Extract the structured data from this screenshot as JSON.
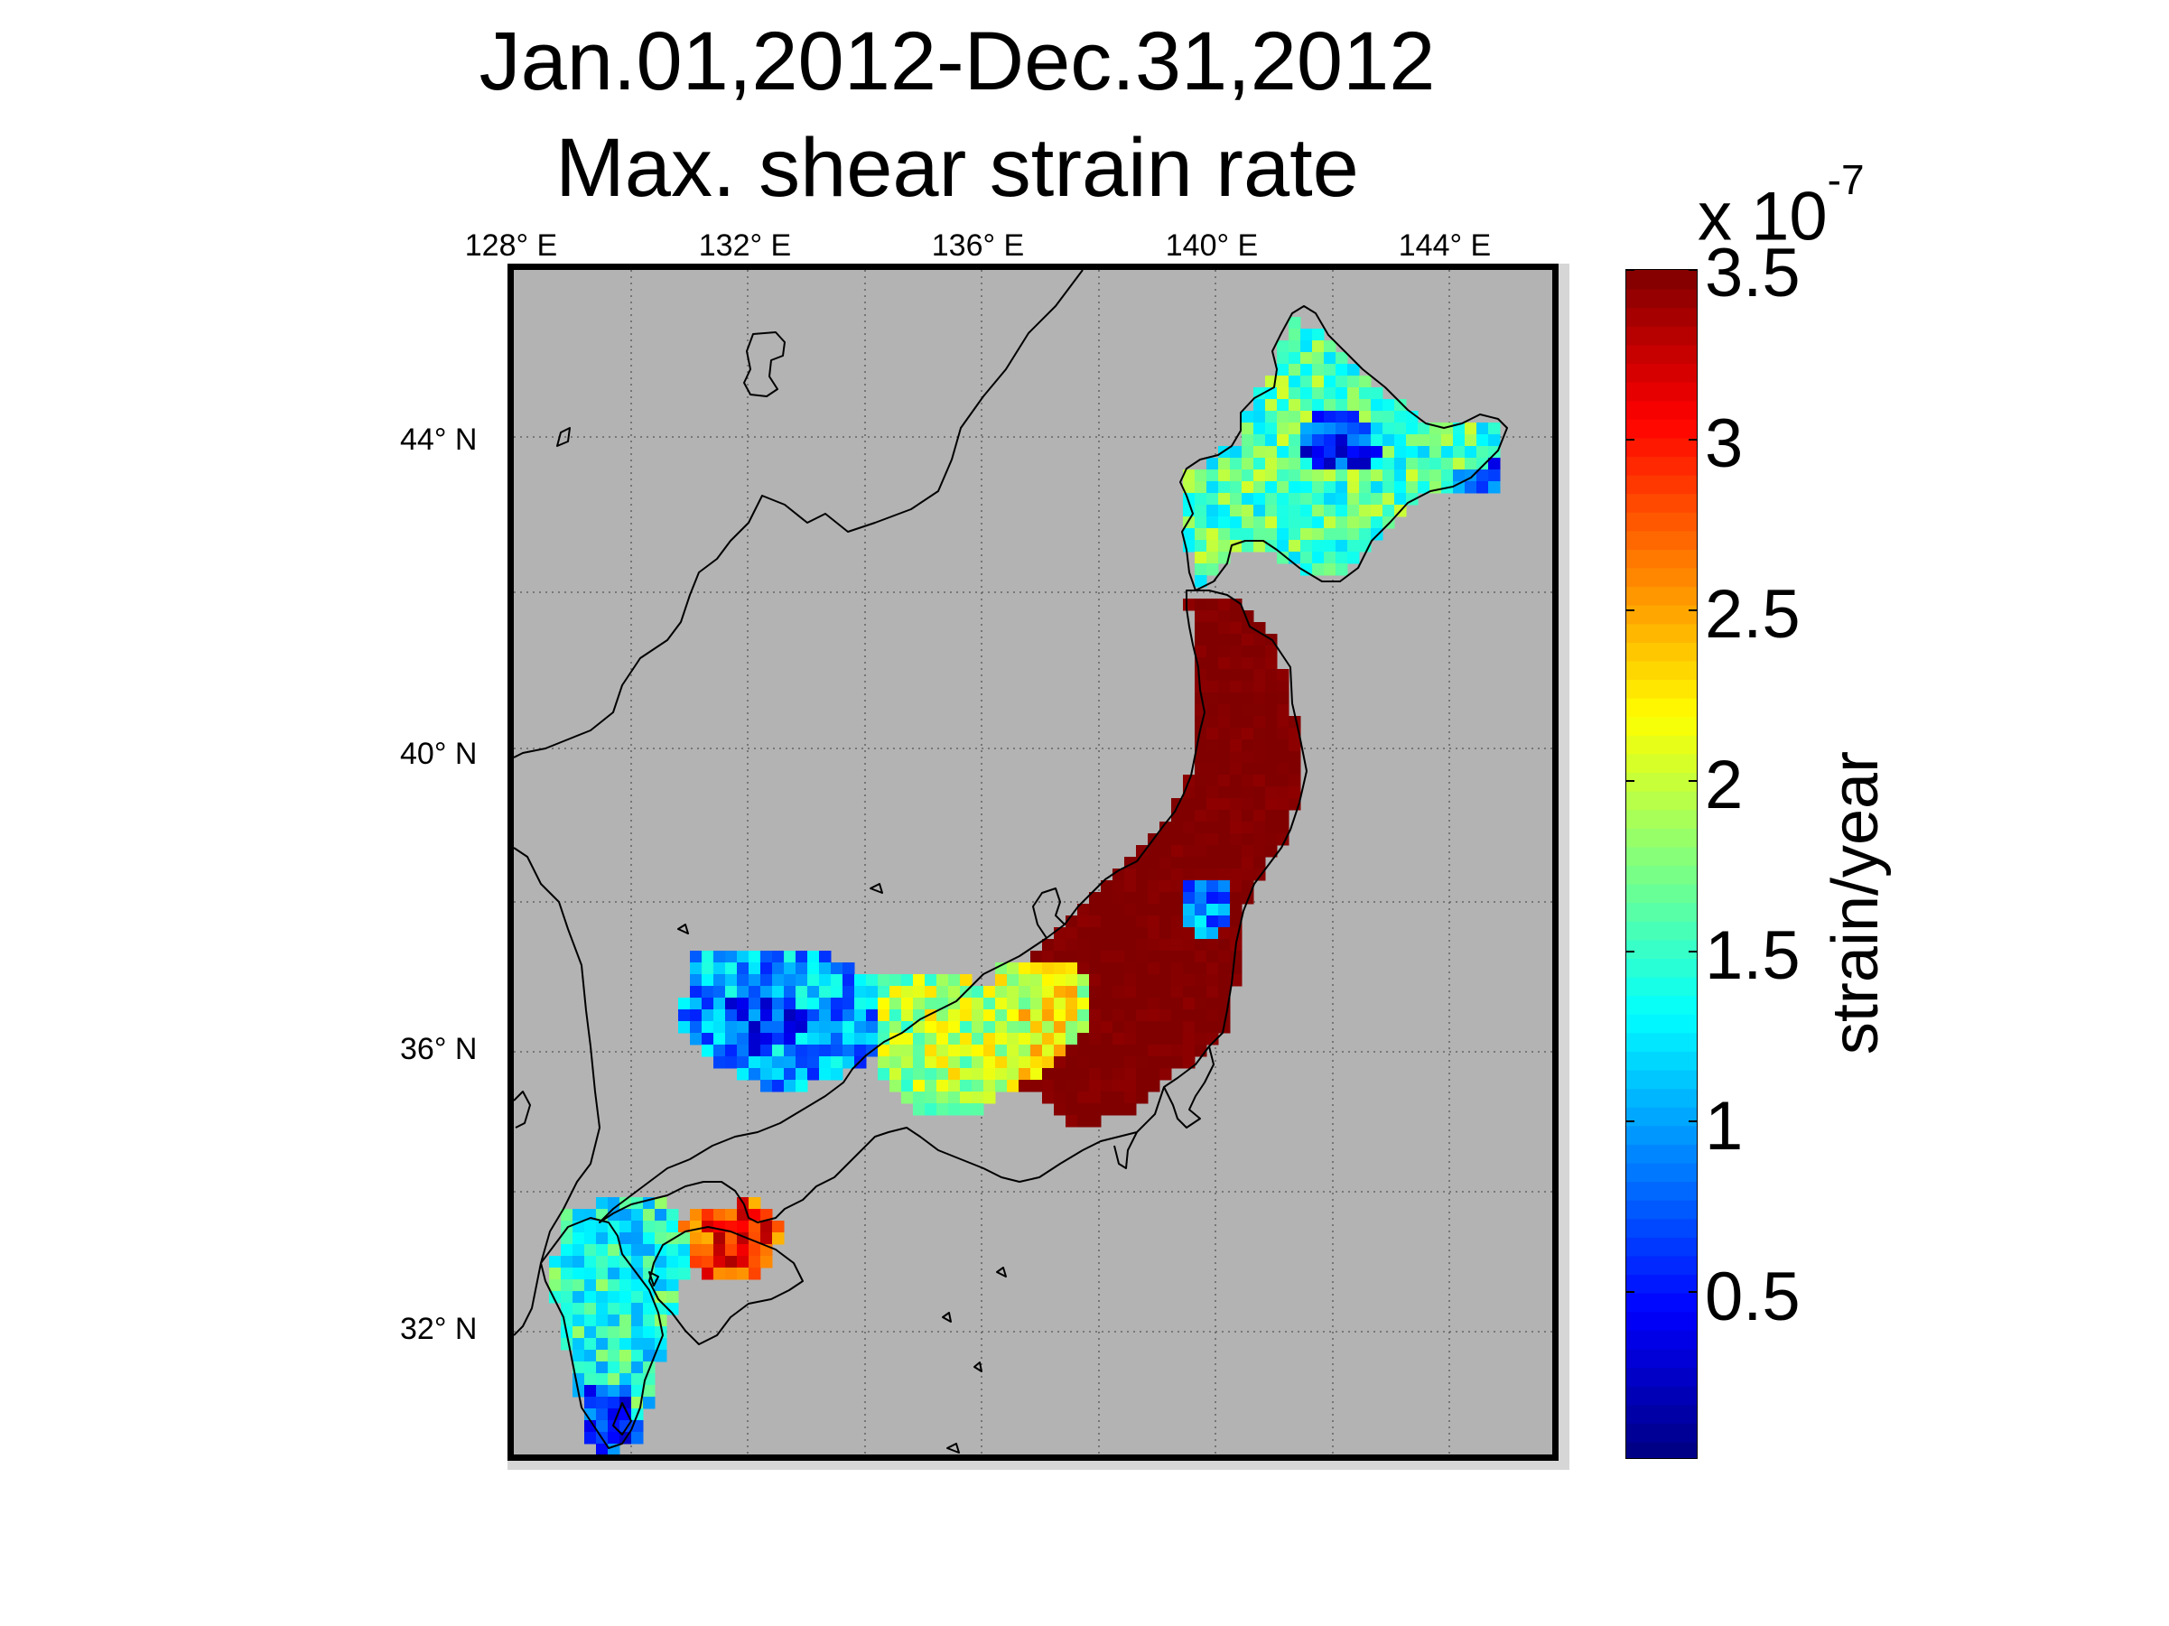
{
  "title": {
    "line1": "Jan.01,2012-Dec.31,2012",
    "line2": "Max. shear strain rate"
  },
  "map": {
    "longitude_labels": [
      "128° E",
      "132° E",
      "136° E",
      "140° E",
      "144° E"
    ],
    "latitude_labels": [
      "44° N",
      "40° N",
      "36° N",
      "32° N"
    ],
    "longitude_ticks_deg": [
      128,
      132,
      136,
      140,
      144
    ],
    "latitude_ticks_deg": [
      44,
      40,
      36,
      32
    ],
    "lon_range_deg": [
      128,
      146
    ],
    "lat_range_deg": [
      30,
      46
    ],
    "background_color": "#b3b3b3",
    "coastline_color": "#000000",
    "grid": "dotted"
  },
  "colorbar": {
    "exponent_label": "x 10",
    "exponent_power": "-7",
    "tick_labels": [
      "3.5",
      "3",
      "2.5",
      "2",
      "1.5",
      "1",
      "0.5"
    ],
    "tick_values": [
      3.5,
      3.0,
      2.5,
      2.0,
      1.5,
      1.0,
      0.5
    ],
    "range": [
      0,
      3.5
    ],
    "unit_label": "strain/year",
    "colormap": "jet"
  }
}
